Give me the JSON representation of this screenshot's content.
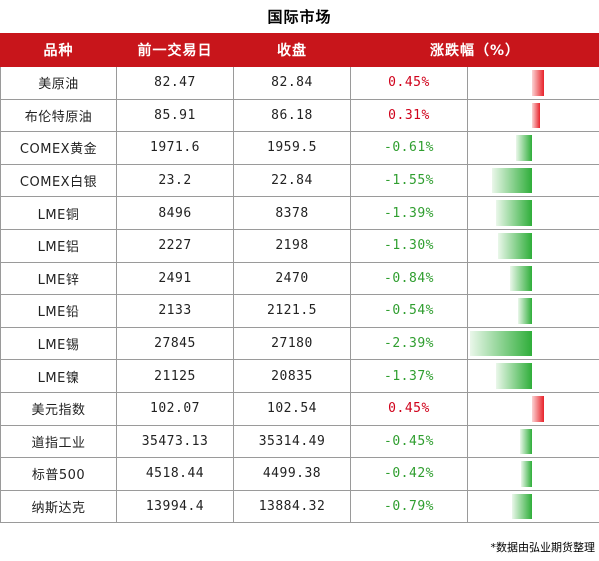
{
  "title": "国际市场",
  "header": {
    "name": "品种",
    "prev": "前一交易日",
    "close": "收盘",
    "change": "涨跌幅（%）"
  },
  "rows": [
    {
      "name": "美原油",
      "prev": "82.47",
      "close": "82.84",
      "change": "0.45%",
      "value": 0.45
    },
    {
      "name": "布伦特原油",
      "prev": "85.91",
      "close": "86.18",
      "change": "0.31%",
      "value": 0.31
    },
    {
      "name": "COMEX黄金",
      "prev": "1971.6",
      "close": "1959.5",
      "change": "-0.61%",
      "value": -0.61
    },
    {
      "name": "COMEX白银",
      "prev": "23.2",
      "close": "22.84",
      "change": "-1.55%",
      "value": -1.55
    },
    {
      "name": "LME铜",
      "prev": "8496",
      "close": "8378",
      "change": "-1.39%",
      "value": -1.39
    },
    {
      "name": "LME铝",
      "prev": "2227",
      "close": "2198",
      "change": "-1.30%",
      "value": -1.3
    },
    {
      "name": "LME锌",
      "prev": "2491",
      "close": "2470",
      "change": "-0.84%",
      "value": -0.84
    },
    {
      "name": "LME铅",
      "prev": "2133",
      "close": "2121.5",
      "change": "-0.54%",
      "value": -0.54
    },
    {
      "name": "LME锡",
      "prev": "27845",
      "close": "27180",
      "change": "-2.39%",
      "value": -2.39
    },
    {
      "name": "LME镍",
      "prev": "21125",
      "close": "20835",
      "change": "-1.37%",
      "value": -1.37
    },
    {
      "name": "美元指数",
      "prev": "102.07",
      "close": "102.54",
      "change": "0.45%",
      "value": 0.45
    },
    {
      "name": "道指工业",
      "prev": "35473.13",
      "close": "35314.49",
      "change": "-0.45%",
      "value": -0.45
    },
    {
      "name": "标普500",
      "prev": "4518.44",
      "close": "4499.38",
      "change": "-0.42%",
      "value": -0.42
    },
    {
      "name": "纳斯达克",
      "prev": "13994.4",
      "close": "13884.32",
      "change": "-0.79%",
      "value": -0.79
    }
  ],
  "colors": {
    "header_bg": "#c8151b",
    "up": "#d0021b",
    "down": "#2f9e2f"
  },
  "footnote": "*数据由弘业期货整理"
}
